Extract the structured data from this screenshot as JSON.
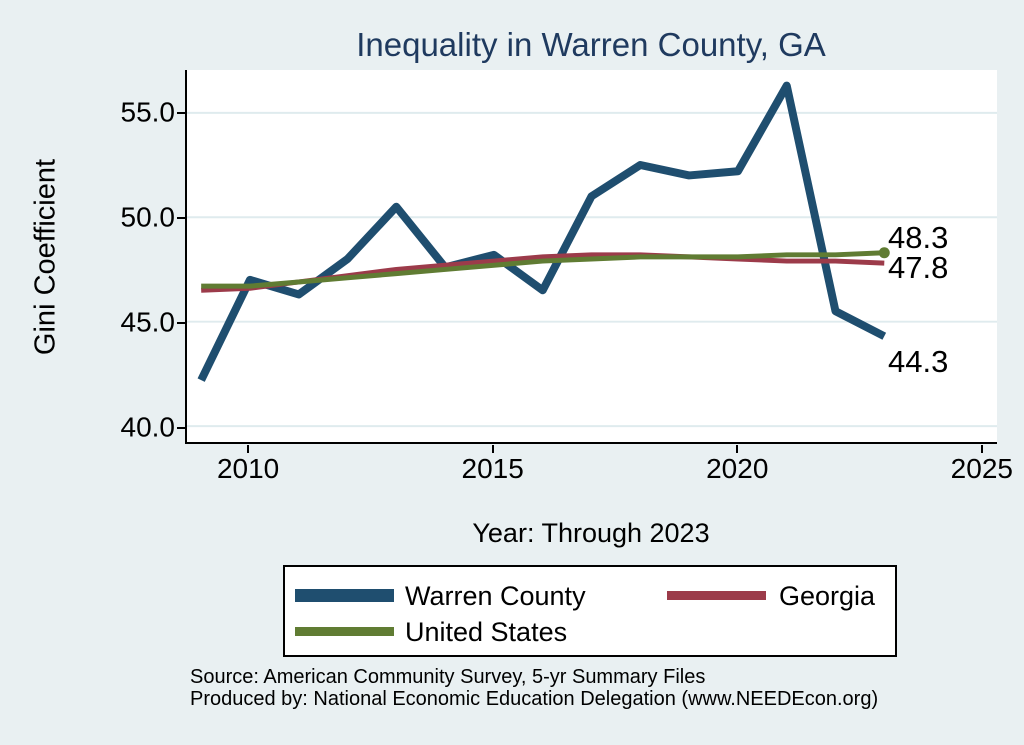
{
  "title": "Inequality in Warren County, GA",
  "y_axis": {
    "label": "Gini Coefficient",
    "ticks": [
      "55.0",
      "50.0",
      "45.0",
      "40.0"
    ]
  },
  "x_axis": {
    "label": "Year: Through 2023",
    "ticks": [
      "2010",
      "2015",
      "2020",
      "2025"
    ]
  },
  "end_labels": [
    {
      "text": "48.3",
      "series": "United States"
    },
    {
      "text": "47.8",
      "series": "Georgia"
    },
    {
      "text": "44.3",
      "series": "Warren County"
    }
  ],
  "legend": {
    "items": [
      {
        "label": "Warren County"
      },
      {
        "label": "Georgia"
      },
      {
        "label": "United States"
      }
    ]
  },
  "source": {
    "line1": "Source: American Community Survey, 5-yr Summary Files",
    "line2": "Produced by: National Economic Education Delegation (www.NEEDEcon.org)"
  },
  "colors": {
    "background": "#e9f0f2",
    "plot_background": "#ffffff",
    "grid": "#dfebee",
    "title_text": "#1f3a5f",
    "axis_text": "#000000"
  },
  "chart_data": {
    "type": "line",
    "title": "Inequality in Warren County, GA",
    "xlabel": "Year: Through 2023",
    "ylabel": "Gini Coefficient",
    "x": [
      2009,
      2010,
      2011,
      2012,
      2013,
      2014,
      2015,
      2016,
      2017,
      2018,
      2019,
      2020,
      2021,
      2022,
      2023
    ],
    "series": [
      {
        "name": "Warren County",
        "color": "#1f4e6f",
        "stroke_width": 8,
        "values": [
          42.2,
          47.0,
          46.3,
          48.0,
          50.5,
          47.6,
          48.2,
          46.5,
          51.0,
          52.5,
          52.0,
          52.2,
          56.3,
          45.5,
          44.3
        ]
      },
      {
        "name": "Georgia",
        "color": "#9c3b4a",
        "stroke_width": 5,
        "values": [
          46.5,
          46.6,
          46.9,
          47.2,
          47.5,
          47.7,
          47.9,
          48.1,
          48.2,
          48.2,
          48.1,
          48.0,
          47.9,
          47.9,
          47.8
        ]
      },
      {
        "name": "United States",
        "color": "#607c33",
        "stroke_width": 5,
        "end_dot": true,
        "values": [
          46.7,
          46.7,
          46.9,
          47.1,
          47.3,
          47.5,
          47.7,
          47.9,
          48.0,
          48.1,
          48.1,
          48.1,
          48.2,
          48.2,
          48.3
        ]
      }
    ],
    "xlim": [
      2008.71,
      2025.31
    ],
    "ylim": [
      39.24,
      57.05
    ],
    "x_ticks": [
      2010,
      2015,
      2020,
      2025
    ],
    "y_ticks": [
      55.0,
      50.0,
      45.0,
      40.0
    ],
    "grid": true,
    "grid_direction": "horizontal",
    "legend_position": "bottom"
  }
}
